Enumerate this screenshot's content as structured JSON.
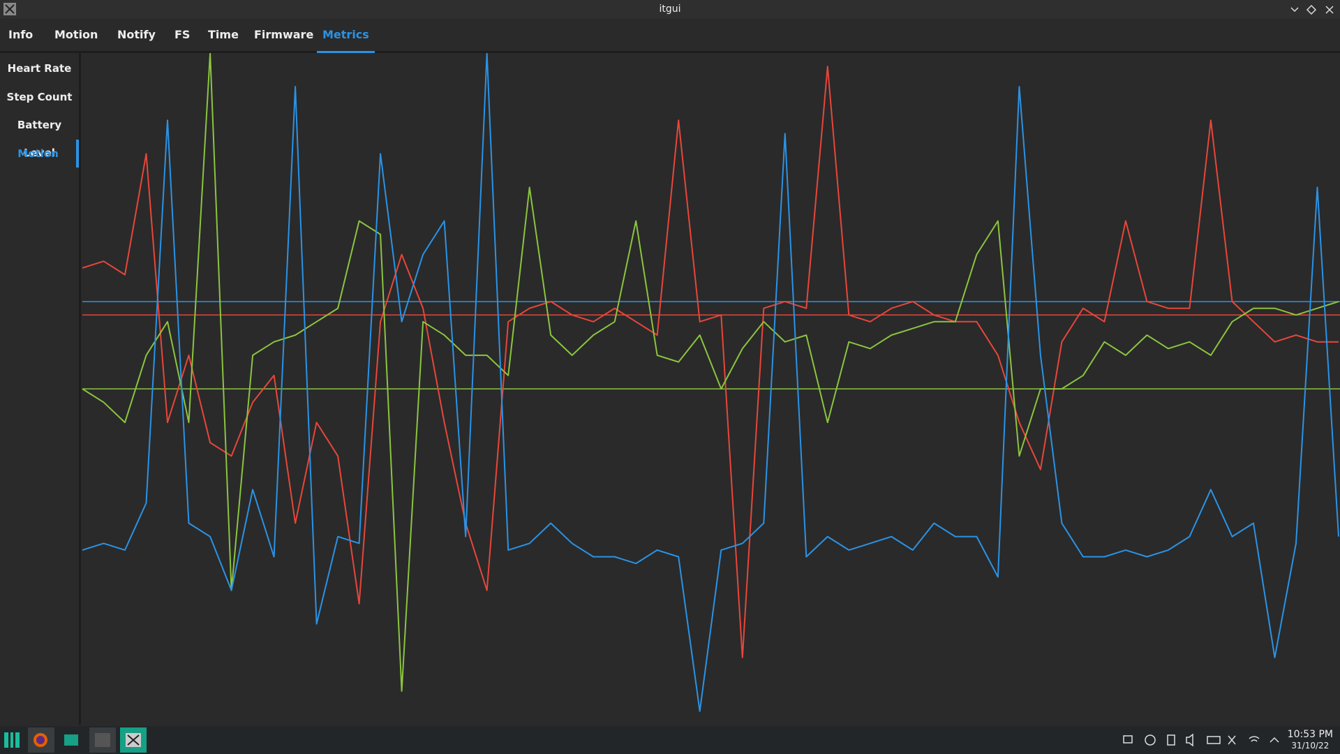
{
  "window": {
    "title": "itgui"
  },
  "tabs": [
    "Info",
    "Motion",
    "Notify",
    "FS",
    "Time",
    "Firmware",
    "Metrics"
  ],
  "active_tab": 6,
  "sidebar": [
    "Heart Rate",
    "Step Count",
    "Battery Level",
    "Motion"
  ],
  "active_sidebar": 3,
  "chart_data": {
    "type": "line",
    "ylim": [
      0,
      100
    ],
    "series": [
      {
        "color": "#e8463a",
        "values": [
          68,
          69,
          67,
          85,
          45,
          55,
          42,
          40,
          48,
          52,
          30,
          45,
          40,
          18,
          60,
          70,
          62,
          45,
          30,
          20,
          60,
          62,
          63,
          61,
          60,
          62,
          60,
          58,
          90,
          60,
          61,
          10,
          62,
          63,
          62,
          98,
          61,
          60,
          62,
          63,
          61,
          60,
          60,
          55,
          45,
          38,
          57,
          62,
          60,
          75,
          63,
          62,
          62,
          90,
          63,
          60,
          57,
          58,
          57,
          57
        ]
      },
      {
        "color": "#8bc53f",
        "values": [
          50,
          48,
          45,
          55,
          60,
          45,
          100,
          20,
          55,
          57,
          58,
          60,
          62,
          75,
          73,
          5,
          60,
          58,
          55,
          55,
          52,
          80,
          58,
          55,
          58,
          60,
          75,
          55,
          54,
          58,
          50,
          56,
          60,
          57,
          58,
          45,
          57,
          56,
          58,
          59,
          60,
          60,
          70,
          75,
          40,
          50,
          50,
          52,
          57,
          55,
          58,
          56,
          57,
          55,
          60,
          62,
          62,
          61,
          62,
          63
        ]
      },
      {
        "color": "#2a93e6",
        "values": [
          26,
          27,
          26,
          33,
          90,
          30,
          28,
          20,
          35,
          25,
          95,
          15,
          28,
          27,
          85,
          60,
          70,
          75,
          28,
          100,
          26,
          27,
          30,
          27,
          25,
          25,
          24,
          26,
          25,
          2,
          26,
          27,
          30,
          88,
          25,
          28,
          26,
          27,
          28,
          26,
          30,
          28,
          28,
          22,
          95,
          55,
          30,
          25,
          25,
          26,
          25,
          26,
          28,
          35,
          28,
          30,
          10,
          27,
          80,
          28
        ]
      }
    ],
    "reference_lines": [
      {
        "value": 61,
        "color": "#e8463a"
      },
      {
        "value": 50,
        "color": "#8bc53f"
      },
      {
        "value": 63,
        "color": "#2a93e6"
      }
    ]
  },
  "taskbar": {
    "time": "10:53 PM",
    "date": "31/10/22"
  }
}
